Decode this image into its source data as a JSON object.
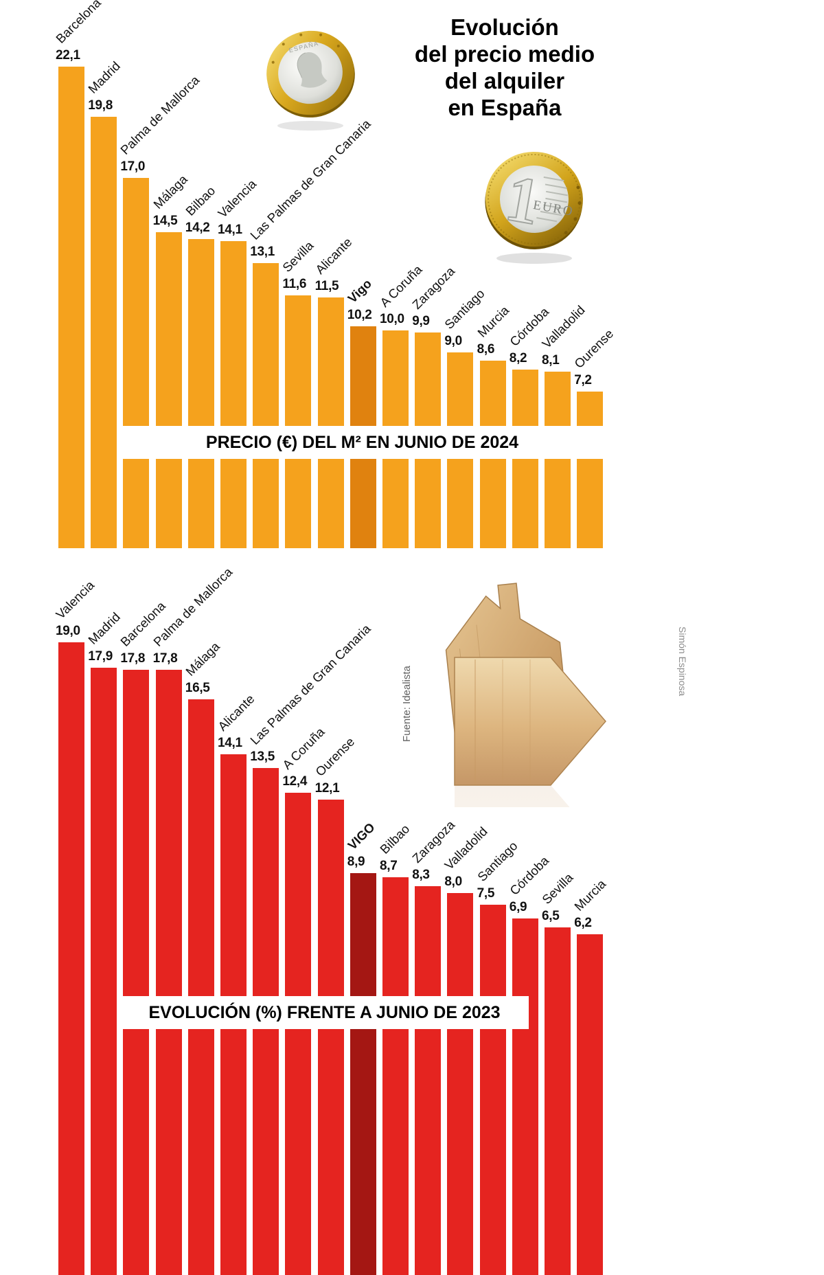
{
  "title": {
    "lines": [
      "Evolución",
      "del precio medio",
      "del alquiler",
      "en España"
    ]
  },
  "credits": {
    "source": "Fuente: Idealista",
    "author": "Simón Espinosa"
  },
  "coins": {
    "front_country": "ESPAÑA",
    "back_value": "1",
    "back_currency": "EURO"
  },
  "chart_data": [
    {
      "type": "bar",
      "title": "PRECIO (€) DEL M² EN JUNIO DE 2024",
      "unit": "€/m²",
      "bar_color": "#F5A21D",
      "highlight_color": "#E0820F",
      "highlight_index": 9,
      "categories": [
        "Barcelona",
        "Madrid",
        "Palma de Mallorca",
        "Málaga",
        "Bilbao",
        "Valencia",
        "Las Palmas de Gran Canaria",
        "Sevilla",
        "Alicante",
        "Vigo",
        "A Coruña",
        "Zaragoza",
        "Santiago",
        "Murcia",
        "Córdoba",
        "Valladolid",
        "Ourense"
      ],
      "values": [
        22.1,
        19.8,
        17.0,
        14.5,
        14.2,
        14.1,
        13.1,
        11.6,
        11.5,
        10.2,
        10.0,
        9.9,
        9.0,
        8.6,
        8.2,
        8.1,
        7.2
      ],
      "value_labels": [
        "22,1",
        "19,8",
        "17,0",
        "14,5",
        "14,2",
        "14,1",
        "13,1",
        "11,6",
        "11,5",
        "10,2",
        "10,0",
        "9,9",
        "9,0",
        "8,6",
        "8,2",
        "8,1",
        "7,2"
      ],
      "ylim": [
        0,
        23
      ],
      "grid": false,
      "legend": "none",
      "value_format": "decimal-comma"
    },
    {
      "type": "bar",
      "title": "EVOLUCIÓN (%) FRENTE A JUNIO DE 2023",
      "unit": "%",
      "bar_color": "#E52420",
      "highlight_color": "#A41713",
      "highlight_index": 9,
      "categories": [
        "Valencia",
        "Madrid",
        "Barcelona",
        "Palma de Mallorca",
        "Málaga",
        "Alicante",
        "Las Palmas de Gran Canaria",
        "A Coruña",
        "Ourense",
        "VIGO",
        "Bilbao",
        "Zaragoza",
        "Valladolid",
        "Santiago",
        "Córdoba",
        "Sevilla",
        "Murcia"
      ],
      "values": [
        19.0,
        17.9,
        17.8,
        17.8,
        16.5,
        14.1,
        13.5,
        12.4,
        12.1,
        8.9,
        8.7,
        8.3,
        8.0,
        7.5,
        6.9,
        6.5,
        6.2
      ],
      "value_labels": [
        "19,0",
        "17,9",
        "17,8",
        "17,8",
        "16,5",
        "14,1",
        "13,5",
        "12,4",
        "12,1",
        "8,9",
        "8,7",
        "8,3",
        "8,0",
        "7,5",
        "6,9",
        "6,5",
        "6,2"
      ],
      "ylim": [
        0,
        20
      ],
      "grid": false,
      "legend": "none",
      "value_format": "decimal-comma"
    }
  ]
}
